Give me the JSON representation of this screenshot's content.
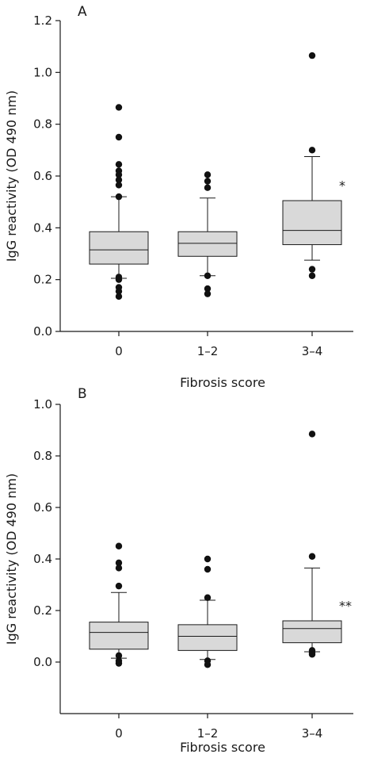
{
  "chart_data": [
    {
      "type": "box",
      "panel_label": "A",
      "xlabel": "Fibrosis score",
      "ylabel": "IgG reactivity (OD 490 nm)",
      "categories": [
        "0",
        "1–2",
        "3–4"
      ],
      "ylim": [
        0.0,
        1.2
      ],
      "yticks": [
        "0.0",
        "0.2",
        "0.4",
        "0.6",
        "0.8",
        "1.0",
        "1.2"
      ],
      "grid": false,
      "boxes": [
        {
          "whisker_low": 0.205,
          "q1": 0.26,
          "median": 0.315,
          "q3": 0.385,
          "whisker_high": 0.52,
          "outliers": [
            0.865,
            0.75,
            0.645,
            0.62,
            0.605,
            0.585,
            0.565,
            0.52,
            0.21,
            0.2,
            0.17,
            0.155,
            0.135
          ]
        },
        {
          "whisker_low": 0.215,
          "q1": 0.29,
          "median": 0.34,
          "q3": 0.385,
          "whisker_high": 0.515,
          "outliers": [
            0.605,
            0.58,
            0.555,
            0.215,
            0.165,
            0.145
          ]
        },
        {
          "whisker_low": 0.275,
          "q1": 0.335,
          "median": 0.39,
          "q3": 0.505,
          "whisker_high": 0.675,
          "outliers": [
            1.065,
            0.7,
            0.24,
            0.215
          ]
        }
      ],
      "annotations": [
        {
          "category": "3–4",
          "text": "*",
          "y": 0.565
        }
      ]
    },
    {
      "type": "box",
      "panel_label": "B",
      "xlabel": "Fibrosis score",
      "ylabel": "IgG reactivity (OD 490 nm)",
      "categories": [
        "0",
        "1–2",
        "3–4"
      ],
      "ylim": [
        -0.2,
        1.0
      ],
      "yticks": [
        "0.0",
        "0.2",
        "0.4",
        "0.6",
        "0.8",
        "1.0"
      ],
      "grid": false,
      "boxes": [
        {
          "whisker_low": 0.015,
          "q1": 0.05,
          "median": 0.115,
          "q3": 0.155,
          "whisker_high": 0.27,
          "outliers": [
            0.45,
            0.385,
            0.365,
            0.295,
            0.025,
            0.005,
            -0.005
          ]
        },
        {
          "whisker_low": 0.01,
          "q1": 0.045,
          "median": 0.1,
          "q3": 0.145,
          "whisker_high": 0.24,
          "outliers": [
            0.4,
            0.36,
            0.25,
            0.005,
            -0.01
          ]
        },
        {
          "whisker_low": 0.04,
          "q1": 0.075,
          "median": 0.13,
          "q3": 0.16,
          "whisker_high": 0.365,
          "outliers": [
            0.885,
            0.41,
            0.045,
            0.035,
            0.03
          ]
        }
      ],
      "annotations": [
        {
          "category": "3–4",
          "text": "**",
          "y": 0.22
        }
      ]
    }
  ]
}
